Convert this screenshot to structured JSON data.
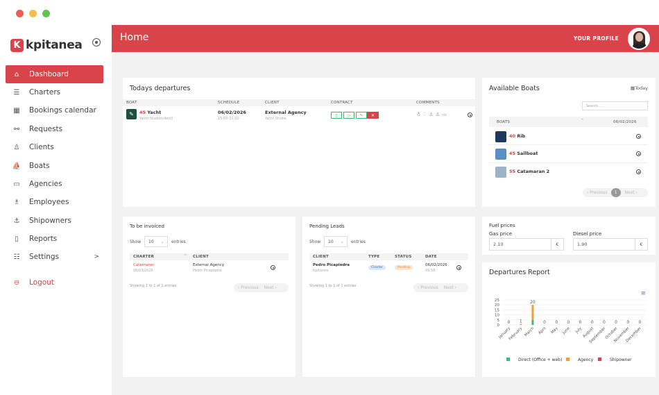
{
  "app": {
    "brand": "kpitanea",
    "brand_mark": "K"
  },
  "sidebar": {
    "items": [
      {
        "label": "Dashboard",
        "icon": "home-icon"
      },
      {
        "label": "Charters",
        "icon": "list-icon"
      },
      {
        "label": "Bookings calendar",
        "icon": "calendar-icon"
      },
      {
        "label": "Requests",
        "icon": "flow-icon"
      },
      {
        "label": "Clients",
        "icon": "user-icon"
      },
      {
        "label": "Boats",
        "icon": "boat-icon"
      },
      {
        "label": "Agencies",
        "icon": "briefcase-icon"
      },
      {
        "label": "Employees",
        "icon": "users-icon"
      },
      {
        "label": "Shipowners",
        "icon": "anchor-icon"
      },
      {
        "label": "Reports",
        "icon": "report-icon"
      },
      {
        "label": "Settings",
        "icon": "sliders-icon"
      }
    ],
    "logout": "Logout"
  },
  "header": {
    "title": "Home",
    "profile_label": "YOUR PROFILE"
  },
  "departures": {
    "title": "Todays departures",
    "columns": [
      "BOAT",
      "SCHEDULE",
      "CLIENT",
      "CONTRACT",
      "COMMENTS"
    ],
    "row": {
      "boat_num": "45",
      "boat_name": "Yacht",
      "boat_sub": "Yacht Studio(client)",
      "date": "06/02/2026",
      "time": "15:00-21:00",
      "client": "External Agency",
      "client_sub": "Yacht Studio"
    }
  },
  "boats": {
    "title": "Available Boats",
    "today": "Today",
    "search_placeholder": "Search...",
    "col_boats": "BOATS",
    "col_date": "06/02/2026",
    "items": [
      {
        "num": "40",
        "name": "Rib"
      },
      {
        "num": "45",
        "name": "Sailboat"
      },
      {
        "num": "55",
        "name": "Catamaran 2"
      }
    ],
    "prev": "‹ Previous",
    "page": "1",
    "next": "Next ›"
  },
  "invoiced": {
    "title": "To be invoiced",
    "show": "Show",
    "entries_value": "10",
    "entries": "entries",
    "columns": [
      "CHARTER",
      "CLIENT"
    ],
    "row": {
      "charter": "Catamaran",
      "charter_date": "08/03/2026",
      "client": "External Agency",
      "client_sub": "Pedro Picapiedra"
    },
    "footer": "Showing 1 to 1 of 1 entries",
    "prev": "‹ Previous",
    "next": "Next ›"
  },
  "leads": {
    "title": "Pending Leads",
    "show": "Show",
    "entries_value": "10",
    "entries": "entries",
    "columns": [
      "CLIENT",
      "TYPE",
      "STATUS",
      "DATE"
    ],
    "row": {
      "client": "Pedro Picapiedra",
      "client_sub": "Kpitanea",
      "type": "Charter",
      "status": "Pending",
      "date": "06/02/2026",
      "time": "09:58"
    },
    "footer": "Showing 1 to 1 of 1 entries",
    "prev": "‹ Previous",
    "next": "Next ›"
  },
  "fuel": {
    "title": "Fuel prices",
    "gas_label": "Gas price",
    "gas_value": "2.10",
    "diesel_label": "Diesel price",
    "diesel_value": "1.90",
    "currency": "€"
  },
  "report": {
    "title": "Departures Report"
  },
  "chart_data": {
    "type": "bar",
    "stacked": true,
    "categories": [
      "January",
      "February",
      "March",
      "April",
      "May",
      "June",
      "July",
      "August",
      "September",
      "October",
      "November",
      "December"
    ],
    "series": [
      {
        "name": "Direct (Office + web)",
        "color": "#3cb878",
        "values": [
          0,
          0,
          5,
          0,
          0,
          0,
          0,
          0,
          0,
          0,
          0,
          0
        ]
      },
      {
        "name": "Agency",
        "color": "#f39c3c",
        "values": [
          0,
          1,
          15,
          0,
          0,
          0,
          0,
          0,
          0,
          0,
          0,
          0
        ]
      },
      {
        "name": "Shipowner",
        "color": "#d9434a",
        "values": [
          0,
          0,
          0,
          0,
          0,
          0,
          0,
          0,
          0,
          0,
          0,
          0
        ]
      }
    ],
    "totals": [
      0,
      1,
      20,
      0,
      0,
      0,
      0,
      0,
      0,
      0,
      0,
      0
    ],
    "yticks": [
      0,
      5,
      10,
      15,
      20,
      25
    ],
    "ylim": [
      0,
      25
    ],
    "legend_position": "bottom"
  }
}
